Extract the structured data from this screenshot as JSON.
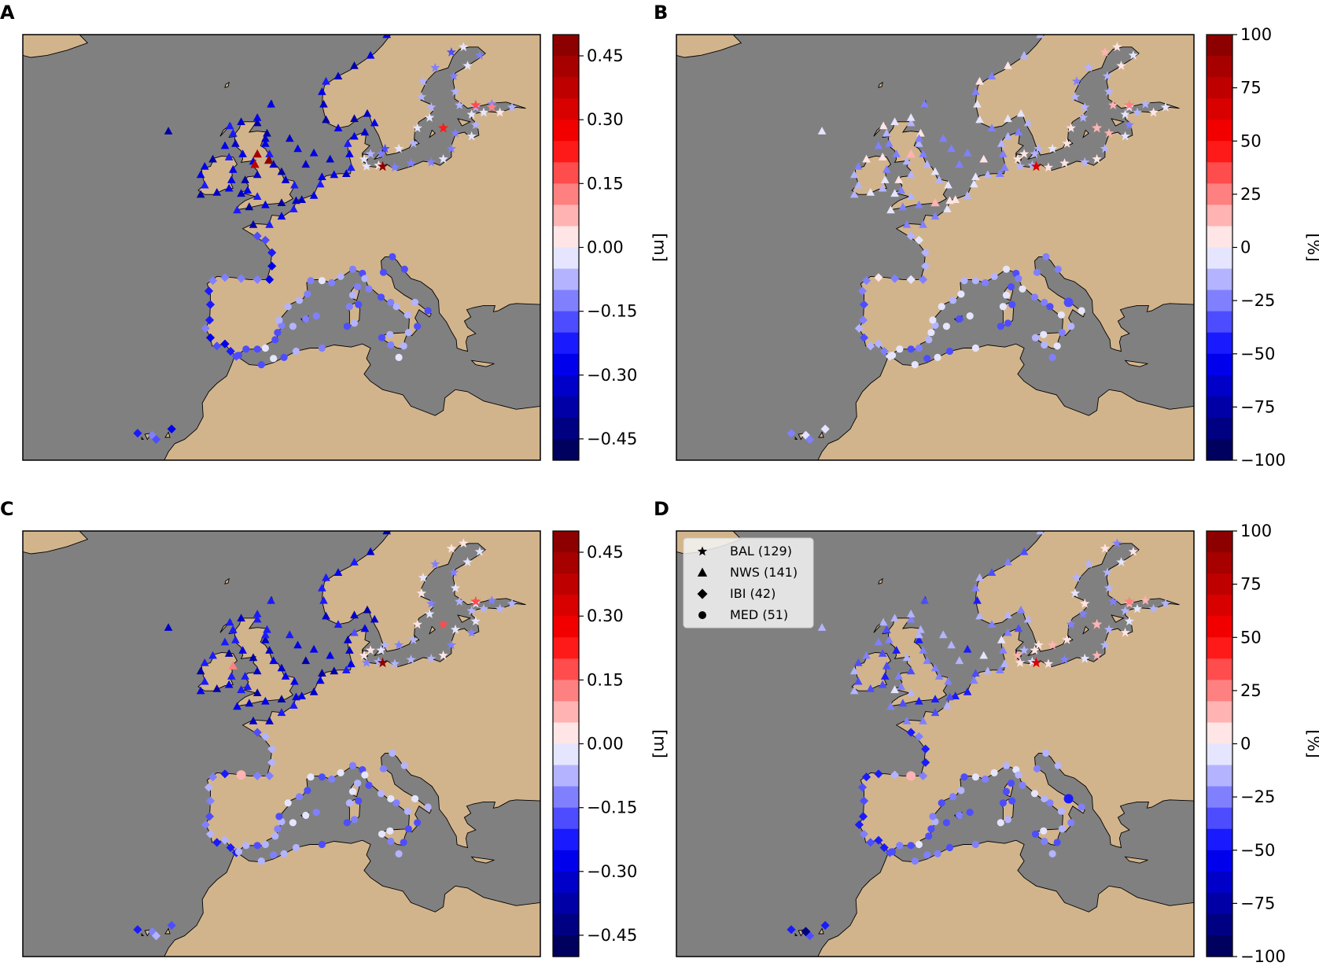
{
  "colors": {
    "sea": "#808080",
    "land": "#d2b48c",
    "frame": "#000000"
  },
  "panels": [
    {
      "id": "A",
      "label": "A",
      "colorbar": "m"
    },
    {
      "id": "B",
      "label": "B",
      "colorbar": "pct"
    },
    {
      "id": "C",
      "label": "C",
      "colorbar": "m"
    },
    {
      "id": "D",
      "label": "D",
      "colorbar": "pct",
      "legend": true
    }
  ],
  "colorbars": {
    "m": {
      "unit_label": "[m]",
      "range": [
        -0.5,
        0.5
      ],
      "ticks": [
        "0.45",
        "0.30",
        "0.15",
        "0.00",
        "−0.15",
        "−0.30",
        "−0.45"
      ],
      "tick_values": [
        0.45,
        0.3,
        0.15,
        0.0,
        -0.15,
        -0.3,
        -0.45
      ]
    },
    "pct": {
      "unit_label": "[%]",
      "range": [
        -100,
        100
      ],
      "ticks": [
        "100",
        "75",
        "50",
        "25",
        "0",
        "−25",
        "−50",
        "−75",
        "−100"
      ],
      "tick_values": [
        100,
        75,
        50,
        25,
        0,
        -25,
        -50,
        -75,
        -100
      ]
    }
  },
  "legend": {
    "items": [
      {
        "marker": "star",
        "label": "BAL (129)"
      },
      {
        "marker": "triangle",
        "label": "NWS (141)"
      },
      {
        "marker": "diamond",
        "label": "IBI (42)"
      },
      {
        "marker": "circle",
        "label": "MED (51)"
      }
    ]
  },
  "map_extent_deg": {
    "lon": [
      -32,
      32
    ],
    "lat": [
      26,
      67
    ]
  },
  "regions": {
    "BAL": {
      "marker": "star",
      "coast_lonlat": [
        [
          10.5,
          54.3
        ],
        [
          12,
          54.4
        ],
        [
          14,
          54.2
        ],
        [
          16,
          54.6
        ],
        [
          18.5,
          54.7
        ],
        [
          20,
          55
        ],
        [
          21,
          56
        ],
        [
          21.5,
          57.5
        ],
        [
          23.5,
          57.2
        ],
        [
          24,
          58.3
        ],
        [
          23.5,
          59.3
        ],
        [
          25,
          59.5
        ],
        [
          27,
          59.5
        ],
        [
          28.5,
          60
        ],
        [
          26,
          60.3
        ],
        [
          24,
          60
        ],
        [
          22,
          60.2
        ],
        [
          21.5,
          61.5
        ],
        [
          21.3,
          63
        ],
        [
          23,
          64
        ],
        [
          24.5,
          65
        ],
        [
          22.5,
          65.8
        ],
        [
          21,
          65.3
        ],
        [
          19,
          63.8
        ],
        [
          17.5,
          62.5
        ],
        [
          17.3,
          61
        ],
        [
          18.5,
          60
        ],
        [
          18.3,
          59
        ],
        [
          16.8,
          58
        ],
        [
          16.3,
          56.5
        ],
        [
          14.5,
          56
        ],
        [
          12.8,
          56
        ],
        [
          12.3,
          55.5
        ],
        [
          11,
          55.5
        ],
        [
          10.2,
          55
        ]
      ]
    },
    "NWS": {
      "marker": "triangle",
      "coast_lonlat": [
        [
          -3.5,
          48.7
        ],
        [
          -1.5,
          48.7
        ],
        [
          0,
          49.5
        ],
        [
          1.5,
          50.2
        ],
        [
          2.5,
          51.1
        ],
        [
          4,
          51.5
        ],
        [
          4.8,
          52.6
        ],
        [
          5,
          53.3
        ],
        [
          6.5,
          53.5
        ],
        [
          8,
          53.6
        ],
        [
          8.6,
          54.2
        ],
        [
          8.4,
          55.5
        ],
        [
          8.2,
          56.5
        ],
        [
          9,
          57.2
        ],
        [
          10.3,
          57.6
        ],
        [
          11.5,
          58.5
        ],
        [
          10.6,
          59.4
        ],
        [
          9,
          58.9
        ],
        [
          7,
          58
        ],
        [
          5.5,
          58.8
        ],
        [
          5.2,
          60.3
        ],
        [
          5,
          61.5
        ],
        [
          5.5,
          62.5
        ],
        [
          7,
          63
        ],
        [
          9,
          64
        ],
        [
          11,
          65
        ],
        [
          13,
          67
        ],
        [
          -5.5,
          50.1
        ],
        [
          -4,
          50.4
        ],
        [
          -2,
          50.6
        ],
        [
          0,
          50.8
        ],
        [
          1.8,
          51
        ],
        [
          1.6,
          52.5
        ],
        [
          0.5,
          53
        ],
        [
          0,
          53.8
        ],
        [
          -1,
          54.5
        ],
        [
          -1.5,
          55.5
        ],
        [
          -2,
          56.5
        ],
        [
          -1.8,
          57.5
        ],
        [
          -3,
          58.5
        ],
        [
          -5,
          58.6
        ],
        [
          -6,
          57.5
        ],
        [
          -5.7,
          56.5
        ],
        [
          -4.8,
          55.5
        ],
        [
          -3.5,
          54.8
        ],
        [
          -3,
          53.5
        ],
        [
          -4.5,
          53
        ],
        [
          -4.2,
          52
        ],
        [
          -5,
          51.7
        ],
        [
          -3,
          51.4
        ],
        [
          -10,
          51.6
        ],
        [
          -9.5,
          52.5
        ],
        [
          -10,
          53.5
        ],
        [
          -9.5,
          54.3
        ],
        [
          -8.5,
          55
        ],
        [
          -6.5,
          55.2
        ],
        [
          -6,
          54
        ],
        [
          -6.2,
          53
        ],
        [
          -6.5,
          52.2
        ],
        [
          -8,
          51.8
        ],
        [
          -1.3,
          60.3
        ],
        [
          -3,
          59
        ],
        [
          -7,
          56.3
        ],
        [
          -6.4,
          58.2
        ],
        [
          -14,
          57.7
        ],
        [
          -2,
          57
        ],
        [
          2,
          56
        ],
        [
          4,
          55.6
        ],
        [
          6,
          55
        ],
        [
          3,
          54.5
        ],
        [
          1,
          57
        ]
      ]
    },
    "IBI": {
      "marker": "diamond",
      "coast_lonlat": [
        [
          -2,
          47.2
        ],
        [
          -1.2,
          46
        ],
        [
          -1.2,
          44.7
        ],
        [
          -1.5,
          43.4
        ],
        [
          -3,
          43.4
        ],
        [
          -5,
          43.5
        ],
        [
          -7,
          43.6
        ],
        [
          -8.5,
          43.3
        ],
        [
          -9,
          42.3
        ],
        [
          -8.8,
          41
        ],
        [
          -8.9,
          39.5
        ],
        [
          -9.4,
          38.7
        ],
        [
          -8.8,
          37.8
        ],
        [
          -8,
          37
        ],
        [
          -7,
          37.2
        ],
        [
          -6.3,
          36.5
        ],
        [
          -5.6,
          36
        ],
        [
          -16,
          28.4
        ],
        [
          -15.5,
          28
        ],
        [
          -17.8,
          28.6
        ],
        [
          -13.6,
          29
        ],
        [
          -3,
          47.6
        ]
      ]
    },
    "MED": {
      "marker": "circle",
      "coast_lonlat": [
        [
          -5.3,
          36.1
        ],
        [
          -4.4,
          36.7
        ],
        [
          -3,
          36.7
        ],
        [
          -2,
          36.8
        ],
        [
          -0.8,
          37.6
        ],
        [
          -0.5,
          38.3
        ],
        [
          0,
          39
        ],
        [
          -0.3,
          39.5
        ],
        [
          0.8,
          40.8
        ],
        [
          2.2,
          41.4
        ],
        [
          3.2,
          42
        ],
        [
          3.6,
          43.3
        ],
        [
          5,
          43.3
        ],
        [
          6.2,
          43.1
        ],
        [
          7.3,
          43.7
        ],
        [
          8.8,
          44.4
        ],
        [
          10,
          44
        ],
        [
          10.3,
          43.5
        ],
        [
          10.8,
          42.5
        ],
        [
          12.3,
          41.7
        ],
        [
          13.5,
          41.2
        ],
        [
          14.2,
          40.8
        ],
        [
          15.6,
          40
        ],
        [
          15.7,
          38.3
        ],
        [
          15.1,
          37
        ],
        [
          13.5,
          37.1
        ],
        [
          12.4,
          37.8
        ],
        [
          13.4,
          38.1
        ],
        [
          9,
          39.2
        ],
        [
          8.4,
          40.8
        ],
        [
          9.5,
          41
        ],
        [
          8.8,
          41.9
        ],
        [
          9.4,
          42.7
        ],
        [
          12.6,
          44.1
        ],
        [
          13.7,
          45.6
        ],
        [
          15.2,
          44.4
        ],
        [
          16.5,
          41.2
        ],
        [
          18.1,
          40.4
        ],
        [
          3,
          39.6
        ],
        [
          1.4,
          38.9
        ],
        [
          4.3,
          39.9
        ],
        [
          -2.5,
          35.2
        ],
        [
          -1,
          35.8
        ],
        [
          0.3,
          35.9
        ],
        [
          1.8,
          36.5
        ],
        [
          5,
          36.8
        ],
        [
          14.5,
          35.9
        ],
        [
          8.1,
          38.9
        ],
        [
          16.8,
          38.9
        ]
      ]
    }
  },
  "panel_values": {
    "A": {
      "BAL": -0.07,
      "NWS": -0.3,
      "IBI": -0.2,
      "MED": -0.12,
      "hot": [
        [
          12.5,
          54.3,
          0.45
        ],
        [
          -3,
          55.5,
          0.4
        ],
        [
          -3.3,
          54.5,
          0.35
        ],
        [
          -1.6,
          54.9,
          0.45
        ],
        [
          20,
          58,
          0.2
        ],
        [
          24,
          60.2,
          0.15
        ],
        [
          26,
          60,
          0.12
        ]
      ]
    },
    "B": {
      "BAL": -5,
      "NWS": -12,
      "IBI": -15,
      "MED": -18,
      "hot": [
        [
          12.5,
          54.3,
          60
        ],
        [
          -3,
          55.5,
          15
        ],
        [
          0,
          50.8,
          10
        ],
        [
          24,
          60.2,
          20
        ],
        [
          20,
          58,
          10
        ],
        [
          16.5,
          41.2,
          -40
        ]
      ]
    },
    "C": {
      "BAL": -0.06,
      "NWS": -0.28,
      "IBI": -0.15,
      "MED": -0.1,
      "hot": [
        [
          12.5,
          54.3,
          0.45
        ],
        [
          -6,
          54,
          0.1
        ],
        [
          20,
          58,
          0.15
        ],
        [
          24,
          60.2,
          0.15
        ],
        [
          -5,
          43.5,
          0.08
        ]
      ]
    },
    "D": {
      "BAL": -6,
      "NWS": -25,
      "IBI": -35,
      "MED": -22,
      "hot": [
        [
          12.5,
          54.3,
          60
        ],
        [
          -16,
          28.4,
          -90
        ],
        [
          24,
          60.2,
          20
        ],
        [
          20,
          58,
          15
        ],
        [
          -3,
          43.4,
          18
        ],
        [
          16.5,
          41.2,
          -50
        ]
      ]
    }
  }
}
